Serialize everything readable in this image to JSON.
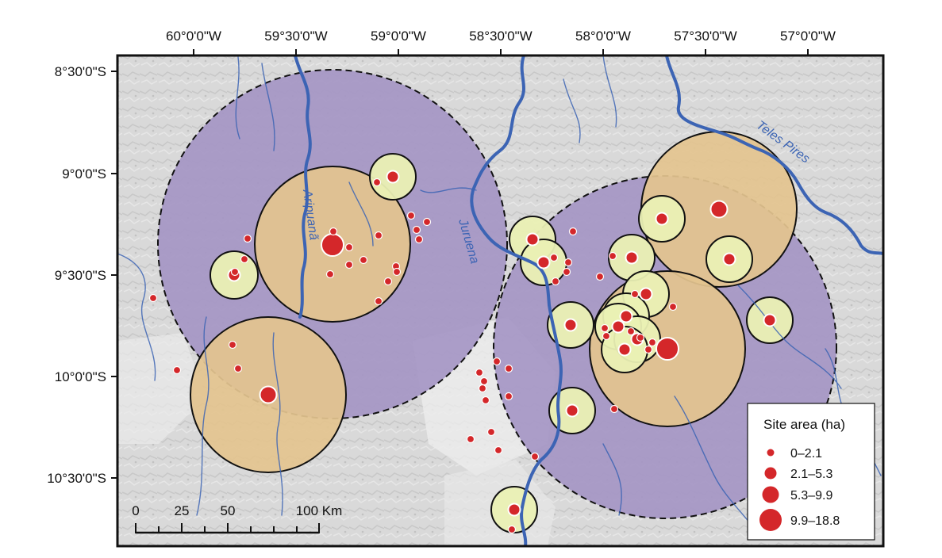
{
  "map": {
    "colors": {
      "background": "#d6d6d6",
      "large_buffer": "#a596c4",
      "medium_buffer": "#e3c48f",
      "small_buffer": "#eaf0b4",
      "site": "#d4272a",
      "river": "#3c64b4",
      "frame": "#111111"
    },
    "longitude_labels": [
      "60°0'0\"W",
      "59°30'0\"W",
      "59°0'0\"W",
      "58°30'0\"W",
      "58°0'0\"W",
      "57°30'0\"W",
      "57°0'0\"W"
    ],
    "latitude_labels": [
      "8°30'0\"S",
      "9°0'0\"S",
      "9°30'0\"S",
      "10°0'0\"S",
      "10°30'0\"S"
    ],
    "rivers": [
      "Aripuanã",
      "Juruena",
      "Teles Pires"
    ],
    "legend": {
      "title": "Site area (ha)",
      "items": [
        "0–2.1",
        "2.1–5.3",
        "5.3–9.9",
        "9.9–18.8"
      ]
    },
    "scale_bar": {
      "ticks": [
        "0",
        "25",
        "50",
        "100 Km"
      ]
    }
  }
}
